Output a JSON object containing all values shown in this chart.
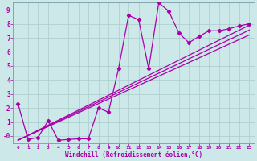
{
  "bg_color": "#cce8e8",
  "grid_color": "#aacccc",
  "line_color": "#aa00aa",
  "xlim": [
    -0.5,
    23.5
  ],
  "ylim": [
    -0.5,
    9.5
  ],
  "xticks": [
    0,
    1,
    2,
    3,
    4,
    5,
    6,
    7,
    8,
    9,
    10,
    11,
    12,
    13,
    14,
    15,
    16,
    17,
    18,
    19,
    20,
    21,
    22,
    23
  ],
  "yticks": [
    0,
    1,
    2,
    3,
    4,
    5,
    6,
    7,
    8,
    9
  ],
  "ytick_labels": [
    "-0",
    "1",
    "2",
    "3",
    "4",
    "5",
    "6",
    "7",
    "8",
    "9"
  ],
  "xlabel": "Windchill (Refroidissement éolien,°C)",
  "data_main_x": [
    0,
    1,
    2,
    3,
    4,
    5,
    6,
    7,
    8,
    9,
    10,
    11,
    12,
    13,
    14,
    15,
    16,
    17,
    18,
    19,
    20,
    21,
    22,
    23
  ],
  "data_main_y": [
    2.3,
    -0.25,
    -0.1,
    1.1,
    -0.3,
    -0.25,
    -0.2,
    -0.2,
    2.0,
    1.7,
    4.8,
    8.6,
    8.3,
    4.8,
    9.5,
    8.9,
    7.35,
    6.65,
    7.1,
    7.5,
    7.5,
    7.65,
    7.85,
    8.0
  ],
  "line1_x": [
    0,
    23
  ],
  "line1_y": [
    -0.3,
    7.9
  ],
  "line2_x": [
    0,
    23
  ],
  "line2_y": [
    -0.3,
    7.55
  ],
  "line3_x": [
    0,
    23
  ],
  "line3_y": [
    -0.3,
    7.2
  ]
}
